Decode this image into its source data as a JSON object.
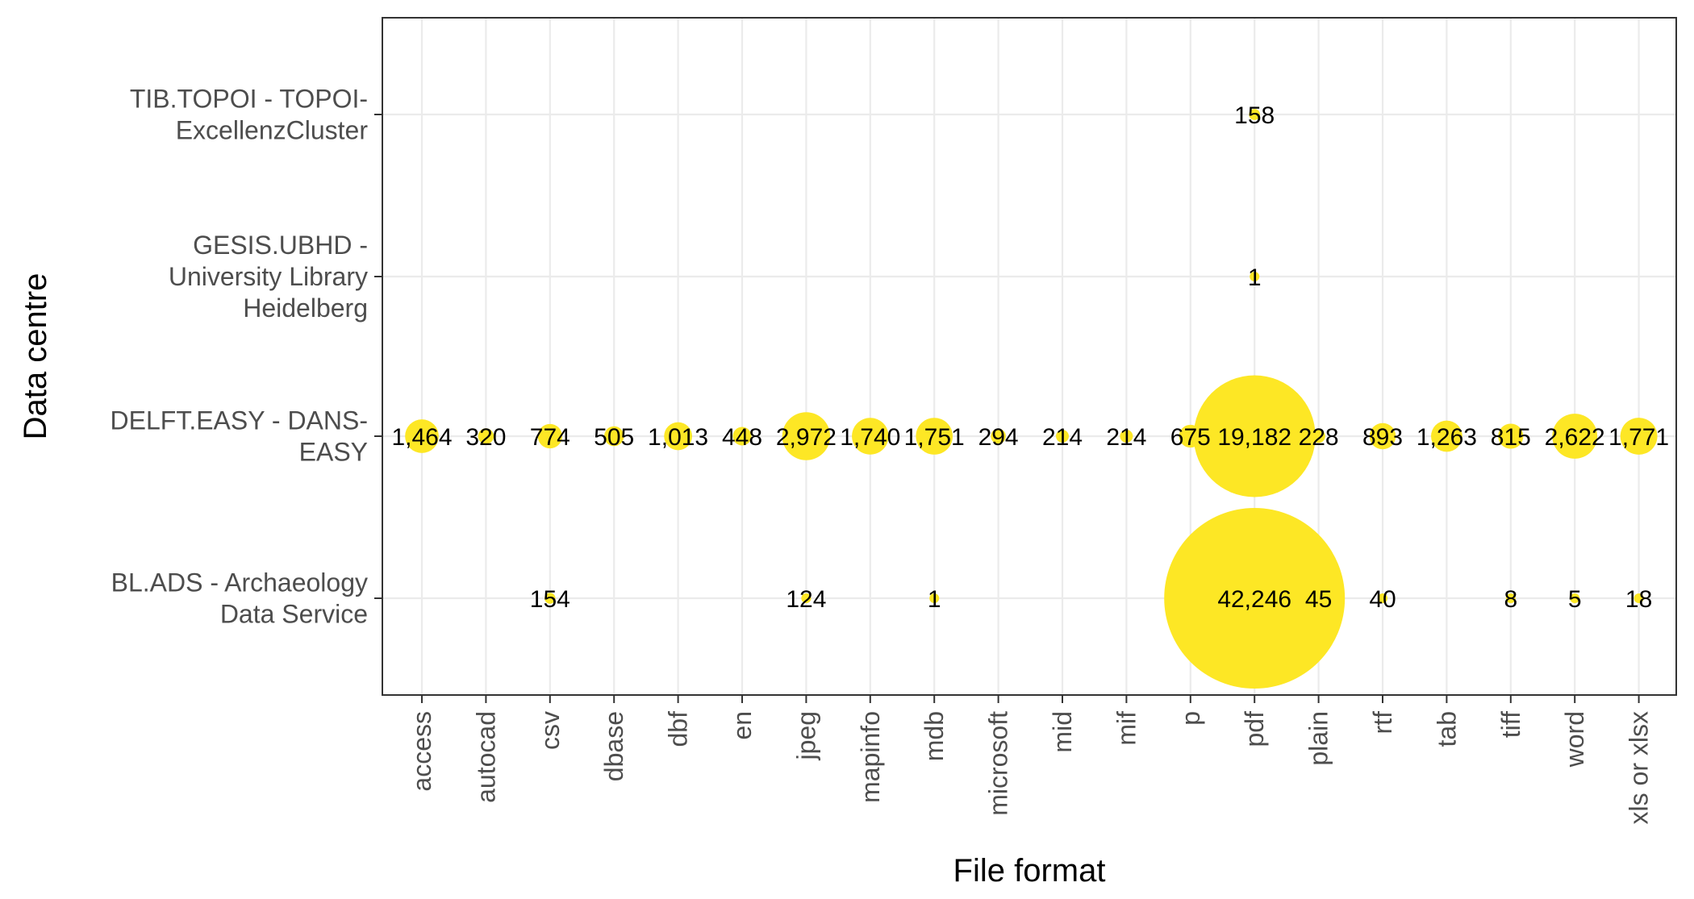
{
  "chart_data": {
    "type": "scatter",
    "subtype": "bubble",
    "xlabel": "File format",
    "ylabel": "Data centre",
    "categories_x": [
      "access",
      "autocad",
      "csv",
      "dbase",
      "dbf",
      "en",
      "jpeg",
      "mapinfo",
      "mdb",
      "microsoft",
      "mid",
      "mif",
      "p",
      "pdf",
      "plain",
      "rtf",
      "tab",
      "tiff",
      "word",
      "xls or xlsx"
    ],
    "categories_y": [
      {
        "lines": [
          "BL.ADS - Archaeology",
          "Data Service"
        ]
      },
      {
        "lines": [
          "DELFT.EASY - DANS-",
          "EASY"
        ]
      },
      {
        "lines": [
          "GESIS.UBHD -",
          "University Library",
          "Heidelberg"
        ]
      },
      {
        "lines": [
          "TIB.TOPOI - TOPOI-",
          "ExcellenzCluster"
        ]
      }
    ],
    "points": [
      {
        "x": "pdf",
        "y": 3,
        "value": 158,
        "label": "158"
      },
      {
        "x": "pdf",
        "y": 2,
        "value": 1,
        "label": "1"
      },
      {
        "x": "access",
        "y": 1,
        "value": 1464,
        "label": "1,464"
      },
      {
        "x": "autocad",
        "y": 1,
        "value": 320,
        "label": "320"
      },
      {
        "x": "csv",
        "y": 1,
        "value": 774,
        "label": "774"
      },
      {
        "x": "dbase",
        "y": 1,
        "value": 505,
        "label": "505"
      },
      {
        "x": "dbf",
        "y": 1,
        "value": 1013,
        "label": "1,013"
      },
      {
        "x": "en",
        "y": 1,
        "value": 448,
        "label": "448"
      },
      {
        "x": "jpeg",
        "y": 1,
        "value": 2972,
        "label": "2,972"
      },
      {
        "x": "mapinfo",
        "y": 1,
        "value": 1740,
        "label": "1,740"
      },
      {
        "x": "mdb",
        "y": 1,
        "value": 1751,
        "label": "1,751"
      },
      {
        "x": "microsoft",
        "y": 1,
        "value": 294,
        "label": "294"
      },
      {
        "x": "mid",
        "y": 1,
        "value": 214,
        "label": "214"
      },
      {
        "x": "mif",
        "y": 1,
        "value": 214,
        "label": "214"
      },
      {
        "x": "p",
        "y": 1,
        "value": 675,
        "label": "675"
      },
      {
        "x": "pdf",
        "y": 1,
        "value": 19182,
        "label": "19,182"
      },
      {
        "x": "plain",
        "y": 1,
        "value": 228,
        "label": "228"
      },
      {
        "x": "rtf",
        "y": 1,
        "value": 893,
        "label": "893"
      },
      {
        "x": "tab",
        "y": 1,
        "value": 1263,
        "label": "1,263"
      },
      {
        "x": "tiff",
        "y": 1,
        "value": 815,
        "label": "815"
      },
      {
        "x": "word",
        "y": 1,
        "value": 2622,
        "label": "2,622"
      },
      {
        "x": "xls or xlsx",
        "y": 1,
        "value": 1771,
        "label": "1,771"
      },
      {
        "x": "csv",
        "y": 0,
        "value": 154,
        "label": "154"
      },
      {
        "x": "jpeg",
        "y": 0,
        "value": 124,
        "label": "124"
      },
      {
        "x": "mdb",
        "y": 0,
        "value": 1,
        "label": "1"
      },
      {
        "x": "pdf",
        "y": 0,
        "value": 42246,
        "label": "42,246"
      },
      {
        "x": "plain",
        "y": 0,
        "value": 45,
        "label": "45"
      },
      {
        "x": "rtf",
        "y": 0,
        "value": 40,
        "label": "40"
      },
      {
        "x": "tiff",
        "y": 0,
        "value": 8,
        "label": "8"
      },
      {
        "x": "word",
        "y": 0,
        "value": 5,
        "label": "5"
      },
      {
        "x": "xls or xlsx",
        "y": 0,
        "value": 18,
        "label": "18"
      }
    ],
    "bubble_color": "#FDE725",
    "grid": true,
    "legend": "none"
  }
}
